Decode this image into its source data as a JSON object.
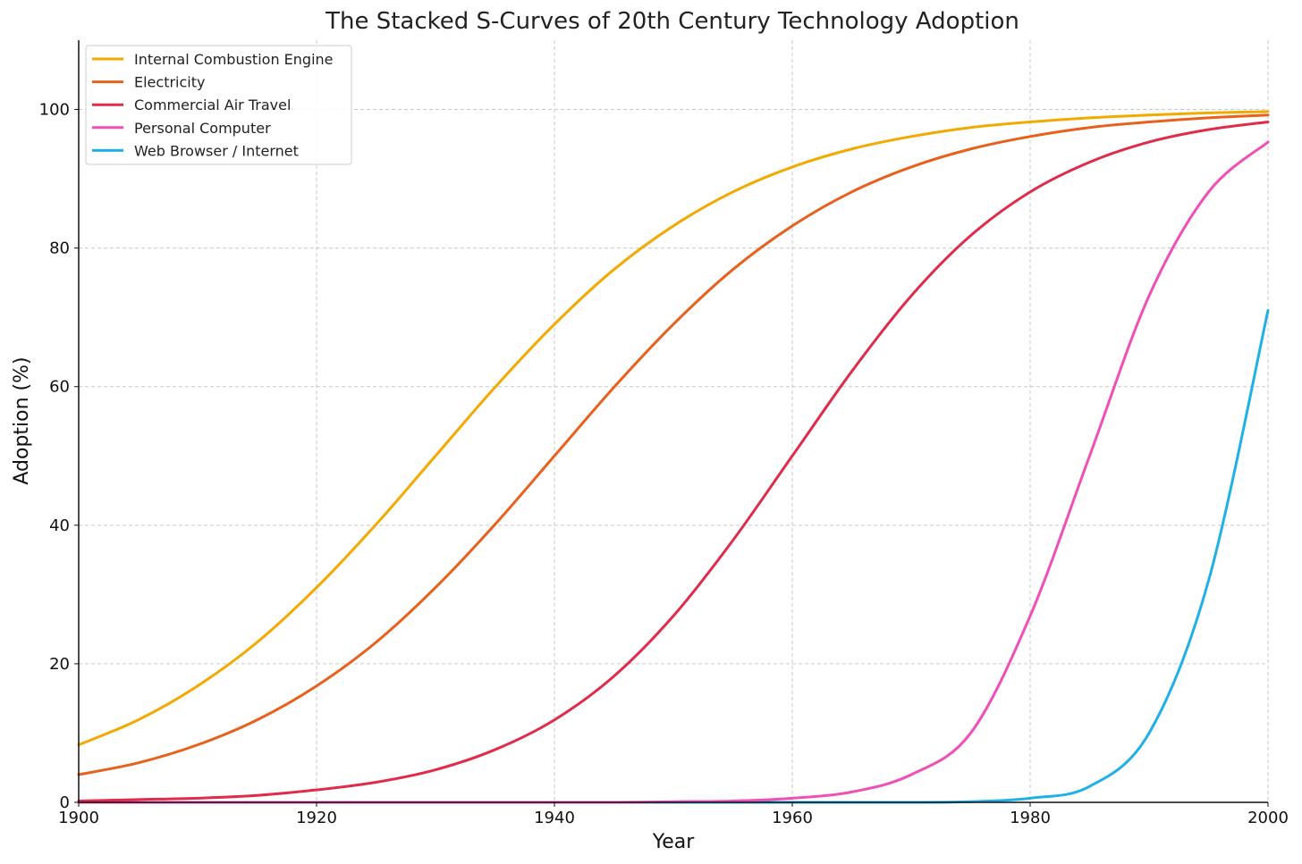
{
  "chart_data": {
    "type": "line",
    "title": "The Stacked S-Curves of 20th Century Technology Adoption",
    "xlabel": "Year",
    "ylabel": "Adoption (%)",
    "xlim": [
      1900,
      2000
    ],
    "ylim": [
      0,
      110
    ],
    "xticks": [
      1900,
      1920,
      1940,
      1960,
      1980,
      2000
    ],
    "yticks": [
      0,
      20,
      40,
      60,
      80,
      100
    ],
    "grid": true,
    "legend_position": "top-left",
    "x": [
      1900,
      1905,
      1910,
      1915,
      1920,
      1925,
      1930,
      1935,
      1940,
      1945,
      1950,
      1955,
      1960,
      1965,
      1970,
      1975,
      1980,
      1985,
      1990,
      1995,
      2000
    ],
    "series": [
      {
        "name": "Internal Combustion Engine",
        "color": "#f2a900",
        "values": [
          8.3,
          11.9,
          16.8,
          23.1,
          31.0,
          40.1,
          50.0,
          59.9,
          69.0,
          76.9,
          83.2,
          88.1,
          91.7,
          94.3,
          96.1,
          97.4,
          98.2,
          98.8,
          99.2,
          99.5,
          99.7
        ]
      },
      {
        "name": "Electricity",
        "color": "#e8601c",
        "values": [
          4.0,
          5.7,
          8.3,
          11.9,
          16.8,
          23.1,
          31.0,
          40.1,
          50.0,
          59.9,
          69.0,
          76.9,
          83.2,
          88.1,
          91.7,
          94.3,
          96.1,
          97.4,
          98.2,
          98.8,
          99.2
        ]
      },
      {
        "name": "Commercial Air Travel",
        "color": "#e02b4a",
        "values": [
          0.2,
          0.4,
          0.6,
          1.0,
          1.8,
          2.9,
          4.7,
          7.6,
          11.9,
          18.2,
          26.9,
          37.8,
          50.0,
          62.2,
          73.1,
          81.8,
          88.1,
          92.4,
          95.3,
          97.1,
          98.2
        ]
      },
      {
        "name": "Personal Computer",
        "color": "#ef4fb6",
        "values": [
          0.0,
          0.0,
          0.0,
          0.0,
          0.0,
          0.0,
          0.0,
          0.0,
          0.0,
          0.0,
          0.1,
          0.2,
          0.6,
          1.5,
          4.0,
          10.0,
          26.9,
          50.0,
          73.1,
          88.1,
          95.3
        ]
      },
      {
        "name": "Web Browser / Internet",
        "color": "#1fb0e8",
        "values": [
          0.0,
          0.0,
          0.0,
          0.0,
          0.0,
          0.0,
          0.0,
          0.0,
          0.0,
          0.0,
          0.0,
          0.0,
          0.0,
          0.0,
          0.0,
          0.1,
          0.6,
          2.3,
          10.0,
          32.0,
          71.0
        ]
      }
    ]
  }
}
